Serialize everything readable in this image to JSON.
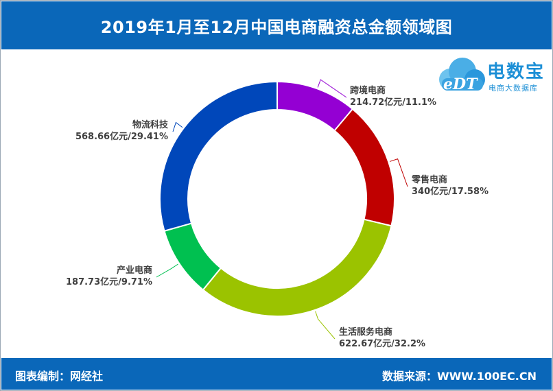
{
  "header": {
    "title": "2019年1月至12月中国电商融资总金额领域图"
  },
  "footer": {
    "left": "图表编制：网经社",
    "right": "数据来源：WWW.100EC.CN"
  },
  "logo": {
    "cloud_text": "eDT",
    "brand": "电数宝",
    "tagline": "电商大数据库"
  },
  "chart_data": {
    "type": "pie",
    "donut": true,
    "categories": [
      "跨境电商",
      "零售电商",
      "生活服务电商",
      "产业电商",
      "物流科技"
    ],
    "values": [
      214.72,
      340,
      622.67,
      187.73,
      568.66
    ],
    "value_labels": [
      "214.72亿元/11.1%",
      "340亿元/17.58%",
      "622.67亿元/32.2%",
      "187.73亿元/9.71%",
      "568.66亿元/29.41%"
    ],
    "colors": [
      "#9400d3",
      "#c00000",
      "#9bc300",
      "#00c050",
      "#0047ba"
    ],
    "title": "2019年1月至12月中国电商融资总金额领域图"
  }
}
